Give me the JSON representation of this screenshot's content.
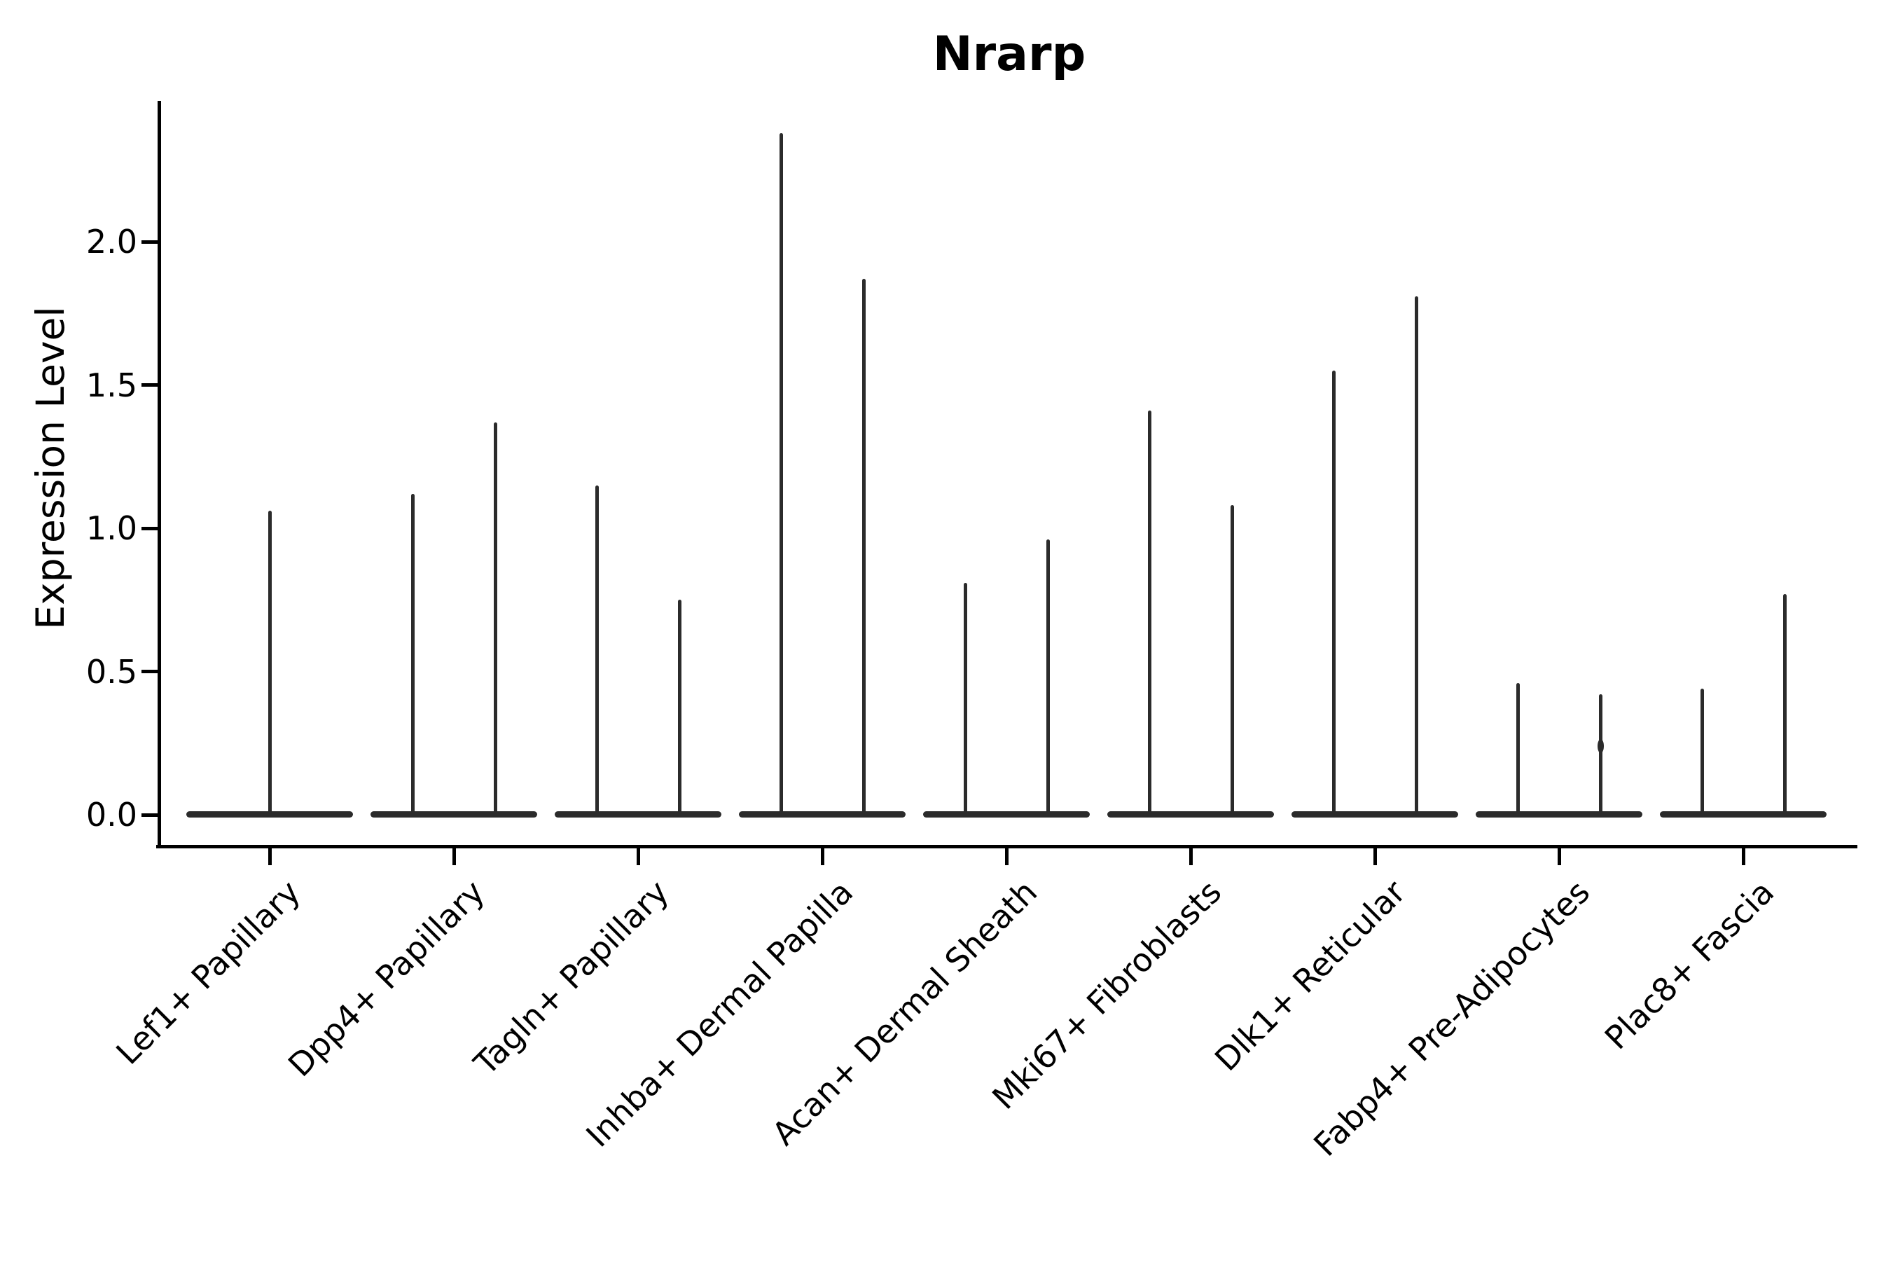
{
  "title": "Nrarp",
  "colors": {
    "background": "#ffffff",
    "axis": "#000000",
    "text": "#000000",
    "violin": "#2b2b2b"
  },
  "chart_data": {
    "type": "violin",
    "title": "Nrarp",
    "xlabel": "",
    "ylabel": "Expression Level",
    "ylim": [
      -0.11,
      2.49
    ],
    "yticks": [
      0.0,
      0.5,
      1.0,
      1.5,
      2.0
    ],
    "ytick_labels": [
      "0.0",
      "0.5",
      "1.0",
      "1.5",
      "2.0"
    ],
    "x_tick_rotation": 45,
    "grid": false,
    "legend": null,
    "categories": [
      "Lef1+ Papillary",
      "Dpp4+ Papillary",
      "Tagln+ Papillary",
      "Inhba+ Dermal Papilla",
      "Acan+ Dermal Sheath",
      "Mki67+ Fibroblasts",
      "Dlk1+ Reticular",
      "Fabp4+ Pre-Adipocytes",
      "Plac8+ Fascia"
    ],
    "violins": [
      {
        "category": "Lef1+ Papillary",
        "maxima": [
          1.06
        ]
      },
      {
        "category": "Dpp4+ Papillary",
        "maxima": [
          1.12,
          1.37
        ]
      },
      {
        "category": "Tagln+ Papillary",
        "maxima": [
          1.15,
          0.75
        ]
      },
      {
        "category": "Inhba+ Dermal Papilla",
        "maxima": [
          2.38,
          1.87
        ]
      },
      {
        "category": "Acan+ Dermal Sheath",
        "maxima": [
          0.81,
          0.96
        ]
      },
      {
        "category": "Mki67+ Fibroblasts",
        "maxima": [
          1.41,
          1.08
        ]
      },
      {
        "category": "Dlk1+ Reticular",
        "maxima": [
          1.55,
          1.81
        ]
      },
      {
        "category": "Fabp4+ Pre-Adipocytes",
        "maxima": [
          0.46,
          0.42
        ],
        "bulge": {
          "violin": 2,
          "value": 0.24
        }
      },
      {
        "category": "Plac8+ Fascia",
        "maxima": [
          0.44,
          0.77
        ]
      }
    ],
    "baseline_value": 0.0,
    "note_all_distributions_concentrated_at": 0.0
  }
}
